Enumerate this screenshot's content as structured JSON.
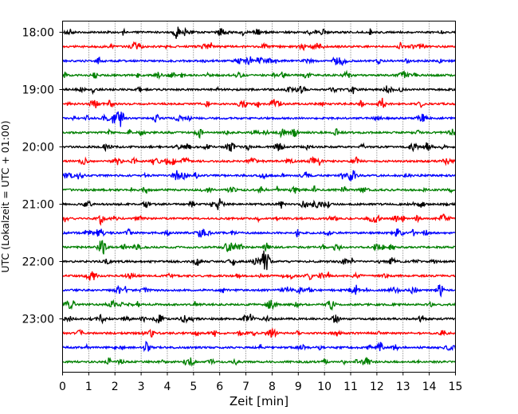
{
  "chart_data": {
    "type": "line",
    "title": "",
    "xlabel": "Zeit  [min]",
    "ylabel": "UTC (Lokalzeit = UTC + 01:00)",
    "xlim": [
      0,
      15
    ],
    "x_ticks": [
      0,
      1,
      2,
      3,
      4,
      5,
      6,
      7,
      8,
      9,
      10,
      11,
      12,
      13,
      14,
      15
    ],
    "x_tick_labels": [
      "0",
      "1",
      "2",
      "3",
      "4",
      "5",
      "6",
      "7",
      "8",
      "9",
      "10",
      "11",
      "12",
      "13",
      "14",
      "15"
    ],
    "y_tick_labels": [
      "18:00",
      "19:00",
      "20:00",
      "21:00",
      "22:00",
      "23:00"
    ],
    "grid": "vertical dotted at x ticks",
    "trace_colors": [
      "#000000",
      "#ff0000",
      "#0000ff",
      "#008000"
    ],
    "traces": [
      {
        "time": "18:00",
        "color": "#000000"
      },
      {
        "time": "18:15",
        "color": "#ff0000"
      },
      {
        "time": "18:30",
        "color": "#0000ff"
      },
      {
        "time": "18:45",
        "color": "#008000"
      },
      {
        "time": "19:00",
        "color": "#000000"
      },
      {
        "time": "19:15",
        "color": "#ff0000"
      },
      {
        "time": "19:30",
        "color": "#0000ff"
      },
      {
        "time": "19:45",
        "color": "#008000"
      },
      {
        "time": "20:00",
        "color": "#000000"
      },
      {
        "time": "20:15",
        "color": "#ff0000"
      },
      {
        "time": "20:30",
        "color": "#0000ff"
      },
      {
        "time": "20:45",
        "color": "#008000"
      },
      {
        "time": "21:00",
        "color": "#000000"
      },
      {
        "time": "21:15",
        "color": "#ff0000"
      },
      {
        "time": "21:30",
        "color": "#0000ff"
      },
      {
        "time": "21:45",
        "color": "#008000"
      },
      {
        "time": "22:00",
        "color": "#000000"
      },
      {
        "time": "22:15",
        "color": "#ff0000"
      },
      {
        "time": "22:30",
        "color": "#0000ff"
      },
      {
        "time": "22:45",
        "color": "#008000"
      },
      {
        "time": "23:00",
        "color": "#000000"
      },
      {
        "time": "23:15",
        "color": "#ff0000"
      },
      {
        "time": "23:30",
        "color": "#0000ff"
      },
      {
        "time": "23:45",
        "color": "#008000"
      }
    ]
  }
}
